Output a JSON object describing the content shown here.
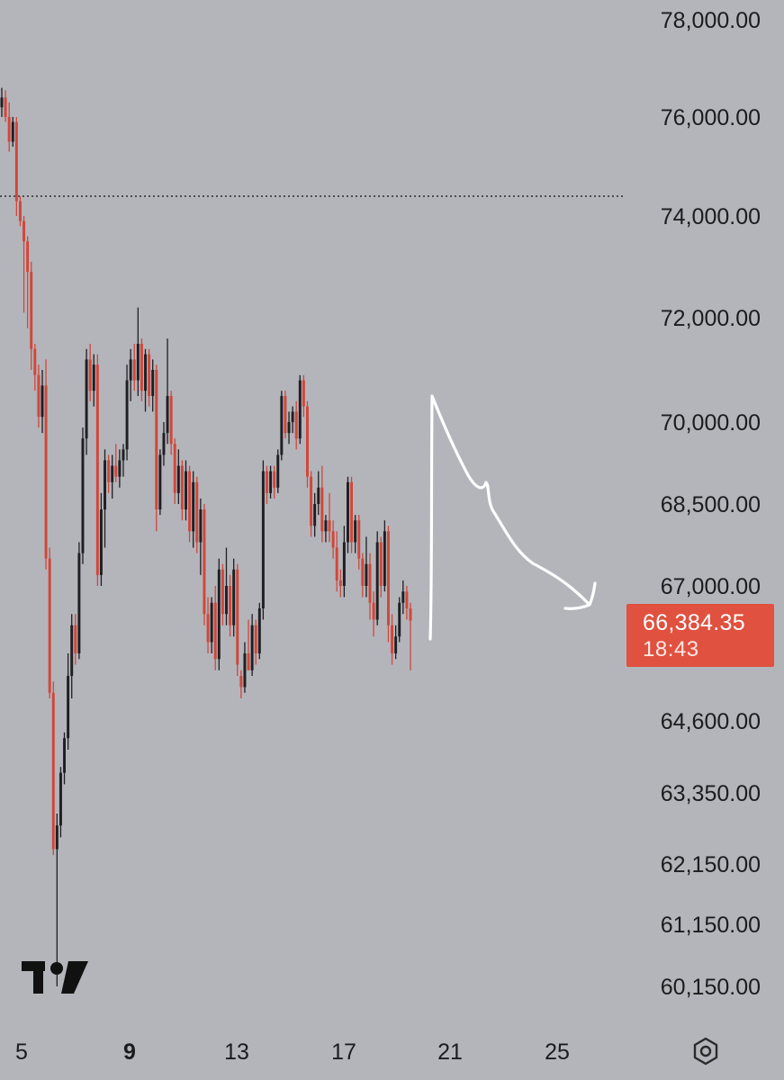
{
  "chart_data": {
    "type": "candlestick",
    "title": "",
    "xlabel": "",
    "ylabel": "",
    "y_axis_side": "right",
    "y_tick_labels": [
      "78,000.00",
      "76,000.00",
      "74,000.00",
      "72,000.00",
      "70,000.00",
      "68,500.00",
      "67,000.00",
      "64,600.00",
      "63,350.00",
      "62,150.00",
      "61,150.00",
      "60,150.00"
    ],
    "x_tick_labels": [
      "5",
      "9",
      "13",
      "17",
      "21",
      "25"
    ],
    "x_bold_label": "9",
    "dotted_reference_line": 74400,
    "candles_ohlc": [
      [
        76200,
        76600,
        76000,
        76400
      ],
      [
        76400,
        76550,
        75900,
        76000
      ],
      [
        76000,
        76300,
        75300,
        75500
      ],
      [
        75500,
        76000,
        75400,
        75900
      ],
      [
        75900,
        76000,
        74000,
        74300
      ],
      [
        74300,
        74400,
        73800,
        73900
      ],
      [
        73900,
        74000,
        72100,
        73500
      ],
      [
        73500,
        73600,
        71800,
        72900
      ],
      [
        72900,
        73100,
        71000,
        71400
      ],
      [
        71400,
        71500,
        70600,
        70900
      ],
      [
        70900,
        71100,
        69900,
        70100
      ],
      [
        70100,
        71000,
        69800,
        70700
      ],
      [
        70700,
        71200,
        67300,
        67500
      ],
      [
        67500,
        67700,
        65000,
        65100
      ],
      [
        65100,
        65300,
        62300,
        62400
      ],
      [
        62400,
        63000,
        60150,
        62800
      ],
      [
        62800,
        63800,
        62600,
        63700
      ],
      [
        63700,
        64400,
        63500,
        64300
      ],
      [
        64300,
        65800,
        64100,
        65400
      ],
      [
        65400,
        66500,
        65000,
        66300
      ],
      [
        66300,
        66500,
        65600,
        65800
      ],
      [
        65800,
        67800,
        65700,
        67600
      ],
      [
        67600,
        69900,
        67400,
        69700
      ],
      [
        69700,
        71400,
        69400,
        71200
      ],
      [
        71200,
        71500,
        70400,
        70600
      ],
      [
        70600,
        71300,
        70300,
        71100
      ],
      [
        71100,
        71300,
        67000,
        67200
      ],
      [
        67200,
        68700,
        67000,
        68400
      ],
      [
        68400,
        69500,
        67700,
        69300
      ],
      [
        69300,
        69400,
        68700,
        68900
      ],
      [
        68900,
        69400,
        68600,
        69200
      ],
      [
        69200,
        69600,
        68900,
        69000
      ],
      [
        69000,
        69500,
        68800,
        69300
      ],
      [
        69300,
        69600,
        69000,
        69500
      ],
      [
        69500,
        71100,
        69300,
        70800
      ],
      [
        70800,
        71400,
        70400,
        71200
      ],
      [
        71200,
        71500,
        70600,
        70800
      ],
      [
        70800,
        72200,
        70500,
        71500
      ],
      [
        71500,
        71600,
        70400,
        70600
      ],
      [
        70600,
        71400,
        70200,
        71300
      ],
      [
        71300,
        71400,
        70300,
        70500
      ],
      [
        70500,
        71200,
        70200,
        71000
      ],
      [
        71000,
        71100,
        68000,
        68400
      ],
      [
        68400,
        69500,
        68300,
        69400
      ],
      [
        69400,
        70000,
        69200,
        69800
      ],
      [
        69800,
        71600,
        69600,
        70500
      ],
      [
        70500,
        70600,
        69400,
        69600
      ],
      [
        69600,
        69700,
        68500,
        68700
      ],
      [
        68700,
        69500,
        68500,
        69200
      ],
      [
        69200,
        69300,
        68200,
        68400
      ],
      [
        68400,
        69300,
        68200,
        69100
      ],
      [
        69100,
        69200,
        67800,
        68000
      ],
      [
        68000,
        69100,
        67700,
        68900
      ],
      [
        68900,
        69000,
        67600,
        67800
      ],
      [
        67800,
        68600,
        67200,
        68400
      ],
      [
        68400,
        68500,
        66300,
        66500
      ],
      [
        66500,
        66800,
        65800,
        66000
      ],
      [
        66000,
        66800,
        65800,
        66700
      ],
      [
        66700,
        67000,
        65500,
        65700
      ],
      [
        65700,
        67500,
        65500,
        67300
      ],
      [
        67300,
        67400,
        66300,
        66500
      ],
      [
        66500,
        67700,
        66300,
        67000
      ],
      [
        67000,
        67200,
        66100,
        66300
      ],
      [
        66300,
        67500,
        66100,
        67300
      ],
      [
        67300,
        67400,
        65400,
        65600
      ],
      [
        65400,
        65500,
        65000,
        65200
      ],
      [
        65200,
        66000,
        65100,
        65800
      ],
      [
        65800,
        66400,
        65500,
        65500
      ],
      [
        65500,
        66500,
        65400,
        66300
      ],
      [
        66300,
        66400,
        65600,
        65800
      ],
      [
        65800,
        66700,
        65700,
        66600
      ],
      [
        66600,
        69300,
        66400,
        69100
      ],
      [
        69100,
        69200,
        68500,
        68700
      ],
      [
        68700,
        69200,
        68600,
        69100
      ],
      [
        69100,
        69200,
        68600,
        68800
      ],
      [
        68800,
        69500,
        68700,
        69400
      ],
      [
        69400,
        70600,
        69300,
        70500
      ],
      [
        70500,
        70600,
        69700,
        69800
      ],
      [
        69800,
        70200,
        69600,
        70000
      ],
      [
        70000,
        70300,
        69800,
        70200
      ],
      [
        70200,
        70400,
        69500,
        69700
      ],
      [
        69700,
        70900,
        69600,
        70800
      ],
      [
        70800,
        70900,
        70100,
        70300
      ],
      [
        70300,
        70400,
        68800,
        69000
      ],
      [
        69000,
        69100,
        67900,
        68100
      ],
      [
        68100,
        68700,
        67900,
        68500
      ],
      [
        68500,
        69100,
        68300,
        68800
      ],
      [
        68800,
        69200,
        67800,
        68000
      ],
      [
        68000,
        68300,
        67800,
        68200
      ],
      [
        68200,
        68700,
        67800,
        68000
      ],
      [
        68000,
        68200,
        67500,
        67700
      ],
      [
        67700,
        68000,
        66900,
        67100
      ],
      [
        67100,
        67300,
        66800,
        67000
      ],
      [
        67000,
        68100,
        66800,
        67800
      ],
      [
        67800,
        69000,
        67600,
        68900
      ],
      [
        68900,
        69000,
        67600,
        67800
      ],
      [
        67800,
        68300,
        67600,
        68200
      ],
      [
        68200,
        68300,
        67300,
        67500
      ],
      [
        67500,
        67600,
        66800,
        67000
      ],
      [
        67000,
        67900,
        66800,
        67400
      ],
      [
        67400,
        67600,
        66400,
        66700
      ],
      [
        66700,
        66900,
        66100,
        66400
      ],
      [
        66400,
        68000,
        66300,
        67800
      ],
      [
        67800,
        67900,
        66800,
        67000
      ],
      [
        67000,
        68200,
        66900,
        68000
      ],
      [
        68000,
        68100,
        66000,
        66300
      ],
      [
        66300,
        66500,
        65600,
        65800
      ],
      [
        65800,
        66300,
        65700,
        66100
      ],
      [
        66100,
        66800,
        66000,
        66700
      ],
      [
        66700,
        67100,
        66500,
        66900
      ],
      [
        66900,
        67000,
        66400,
        66600
      ],
      [
        66600,
        66700,
        65500,
        66384.35
      ]
    ]
  },
  "price_label": {
    "price": "66,384.35",
    "countdown": "18:43",
    "color": "#e0513f"
  },
  "colors": {
    "background": "#b3b5bb",
    "bullish": "#1f1f22",
    "bearish": "#d2463a",
    "annotation": "#ffffff",
    "axis_text": "#1c1c1e"
  },
  "annotation": "hand-drawn white arrow: spike up then decline to the right",
  "logo": "TradingView",
  "settings_icon": "hexagon-settings-icon"
}
